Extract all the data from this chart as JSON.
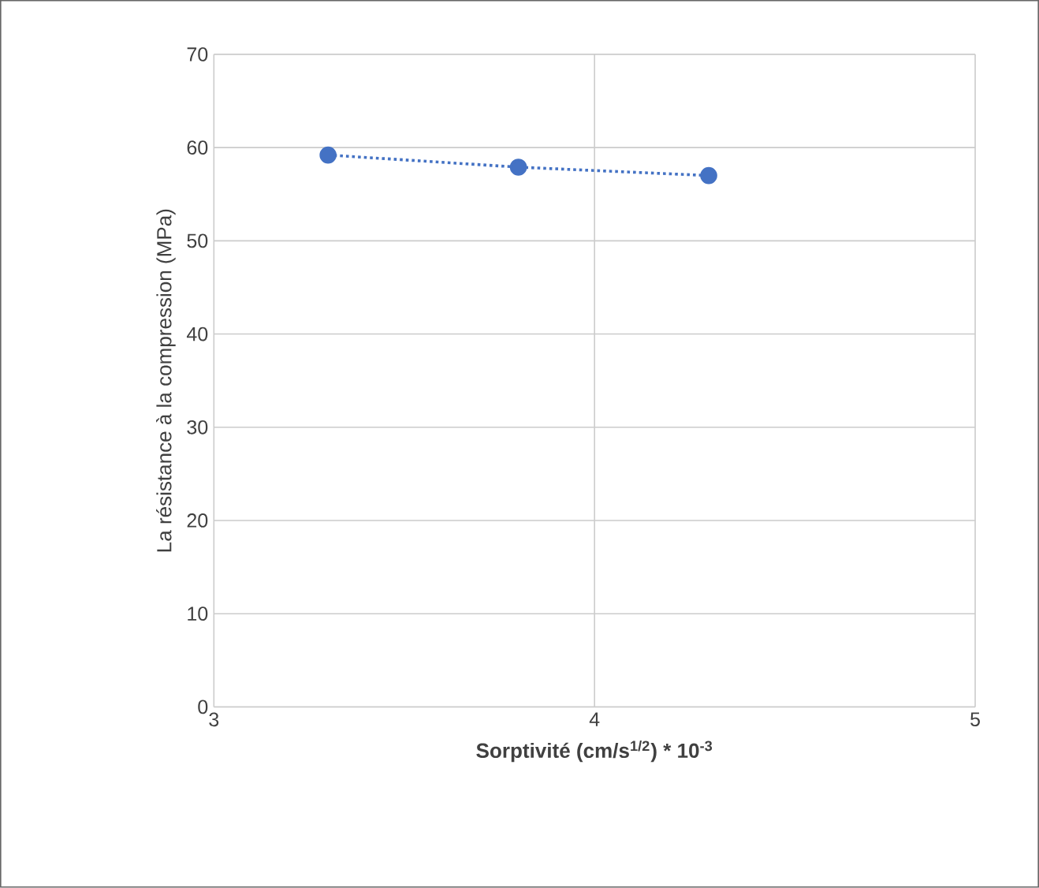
{
  "chart_data": {
    "type": "line",
    "xlabel": "Sorptivité (cm/s$^{1/2}$) * 10$^{-3}$",
    "ylabel": "La résistance à la compression (MPa)",
    "x": [
      3.3,
      3.8,
      4.3
    ],
    "series": [
      {
        "color": "#4472c4",
        "values": [
          59.2,
          57.9,
          57.0
        ]
      }
    ],
    "xlim": [
      3,
      5
    ],
    "ylim": [
      0,
      70
    ],
    "xticks": [
      3,
      4,
      5
    ],
    "yticks": [
      0,
      10,
      20,
      30,
      40,
      50,
      60,
      70
    ],
    "grid": true,
    "marker": "circle",
    "line_style": "dotted"
  }
}
